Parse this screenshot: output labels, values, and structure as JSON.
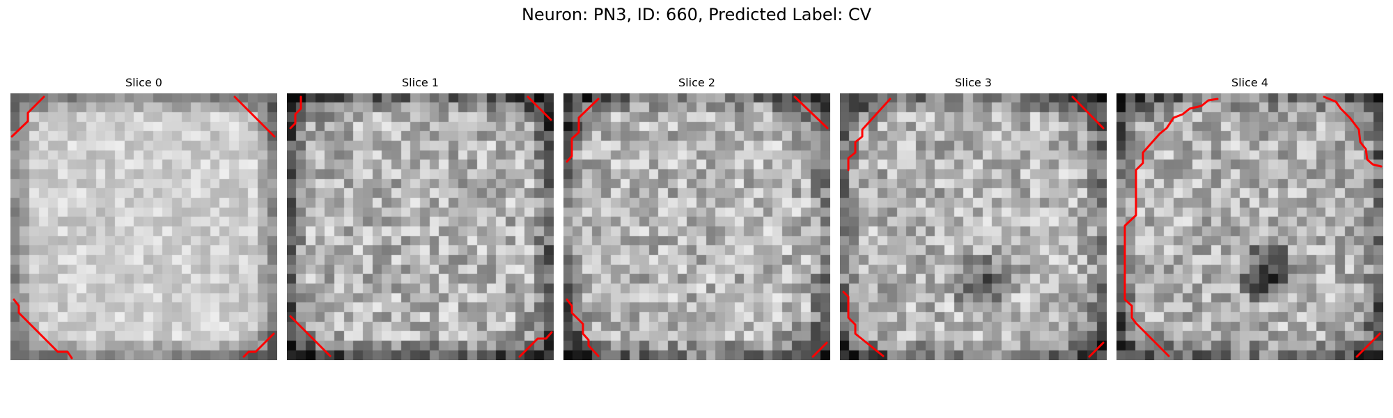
{
  "figure": {
    "title": "Neuron: PN3, ID: 660, Predicted Label: CV",
    "contour_color": "#ff0000",
    "colormap": "gray"
  },
  "slices": [
    {
      "title": "Slice 0"
    },
    {
      "title": "Slice 1"
    },
    {
      "title": "Slice 2"
    },
    {
      "title": "Slice 3"
    },
    {
      "title": "Slice 4"
    }
  ]
}
